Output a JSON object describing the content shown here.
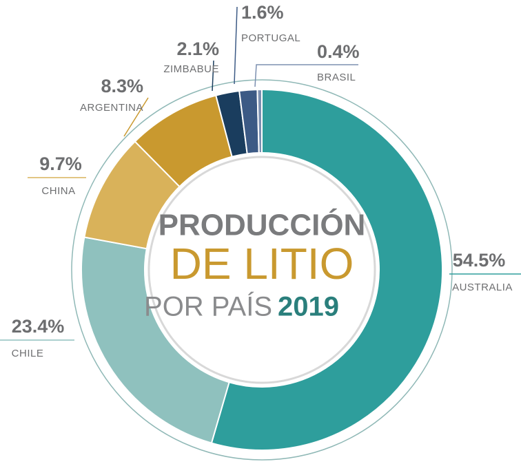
{
  "chart_data": {
    "type": "donut",
    "title": [
      "PRODUCCIÓN",
      "DE LITIO",
      "POR PAÍS",
      "2019"
    ],
    "categories": [
      "AUSTRALIA",
      "CHILE",
      "CHINA",
      "ARGENTINA",
      "ZIMBABUE",
      "PORTUGAL",
      "BRASIL"
    ],
    "values": [
      54.5,
      23.4,
      9.7,
      8.3,
      2.1,
      1.6,
      0.4
    ],
    "value_labels": [
      "54.5%",
      "23.4%",
      "9.7%",
      "8.3%",
      "2.1%",
      "1.6%",
      "0.4%"
    ],
    "colors": [
      "#2e9e9c",
      "#8fc1be",
      "#d9b25a",
      "#c9992f",
      "#1a3d5e",
      "#3c5a85",
      "#7b8fb0"
    ]
  }
}
